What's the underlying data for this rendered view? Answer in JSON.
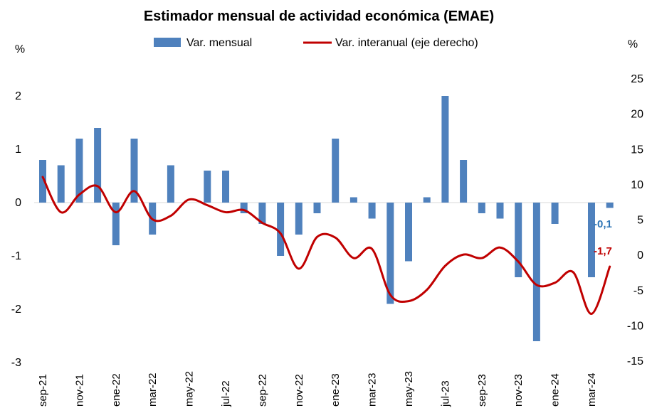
{
  "chart_data": {
    "type": "bar",
    "title": "Estimador mensual de actividad económica (EMAE)",
    "left_unit": "%",
    "right_unit": "%",
    "ylim_left": [
      -3,
      2.5
    ],
    "ylim_right": [
      -15,
      25
    ],
    "yticks_left": [
      "-3",
      "-2",
      "-1",
      "0",
      "1",
      "2"
    ],
    "yticks_right": [
      "-15",
      "-10",
      "-5",
      "0",
      "5",
      "10",
      "15",
      "20",
      "25"
    ],
    "categories": [
      "sep-21",
      "oct-21",
      "nov-21",
      "dic-21",
      "ene-22",
      "feb-22",
      "mar-22",
      "abr-22",
      "may-22",
      "jun-22",
      "jul-22",
      "ago-22",
      "sep-22",
      "oct-22",
      "nov-22",
      "dic-22",
      "ene-23",
      "feb-23",
      "mar-23",
      "abr-23",
      "may-23",
      "jun-23",
      "jul-23",
      "ago-23",
      "sep-23",
      "oct-23",
      "nov-23",
      "dic-23",
      "ene-24",
      "feb-24",
      "mar-24",
      "abr-24"
    ],
    "x_tick_labels": [
      "sep-21",
      "",
      "nov-21",
      "",
      "ene-22",
      "",
      "mar-22",
      "",
      "may-22",
      "",
      "jul-22",
      "",
      "sep-22",
      "",
      "nov-22",
      "",
      "ene-23",
      "",
      "mar-23",
      "",
      "may-23",
      "",
      "jul-23",
      "",
      "sep-23",
      "",
      "nov-23",
      "",
      "ene-24",
      "",
      "mar-24",
      ""
    ],
    "series": [
      {
        "name": "Var. mensual",
        "axis": "left",
        "kind": "bar",
        "color": "#4F81BD",
        "values": [
          0.8,
          0.7,
          1.2,
          1.4,
          -0.8,
          1.2,
          -0.6,
          0.7,
          0.0,
          0.6,
          0.6,
          -0.2,
          -0.4,
          -1.0,
          -0.6,
          -0.2,
          1.2,
          0.1,
          -0.3,
          -1.9,
          -1.1,
          0.1,
          2.0,
          0.8,
          -0.2,
          -0.3,
          -1.4,
          -2.6,
          -0.4,
          0.0,
          -1.4,
          -0.1
        ]
      },
      {
        "name": "Var. interanual (eje derecho)",
        "axis": "right",
        "kind": "line",
        "color": "#C00000",
        "values": [
          11.0,
          6.0,
          8.5,
          9.7,
          6.0,
          9.0,
          5.0,
          5.5,
          7.8,
          7.0,
          6.0,
          6.3,
          4.5,
          3.0,
          -2.0,
          2.5,
          2.4,
          -0.5,
          0.8,
          -5.7,
          -6.6,
          -5.0,
          -1.6,
          0.0,
          -0.5,
          1.0,
          -1.0,
          -4.3,
          -4.0,
          -2.5,
          -8.4,
          -1.7
        ]
      }
    ],
    "annotations": [
      {
        "text": "-0,1",
        "color": "#2E75B6"
      },
      {
        "text": "-1,7",
        "color": "#C00000"
      }
    ],
    "legend_position": "top-center",
    "grid": false
  }
}
